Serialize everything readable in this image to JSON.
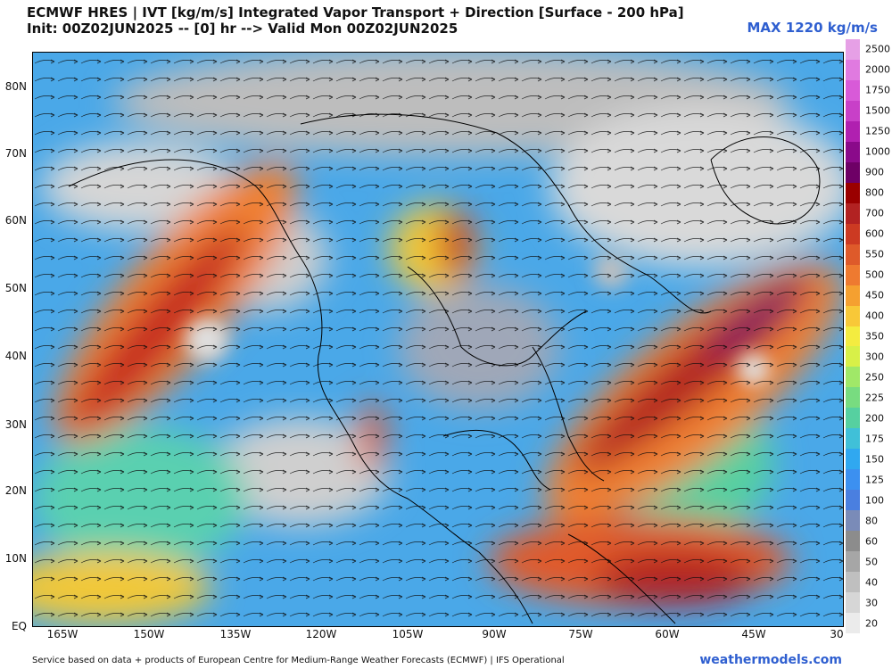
{
  "header": {
    "title_line1": "ECMWF HRES | IVT [kg/m/s] Integrated Vapor Transport + Direction [Surface - 200 hPa]",
    "title_line2": "Init: 00Z02JUN2025 -- [0] hr --> Valid Mon 00Z02JUN2025",
    "max_label": "MAX 1220 kg/m/s"
  },
  "axes": {
    "lat_labels": [
      "80N",
      "70N",
      "60N",
      "50N",
      "40N",
      "30N",
      "20N",
      "10N",
      "EQ"
    ],
    "lon_labels": [
      "165W",
      "150W",
      "135W",
      "120W",
      "105W",
      "90W",
      "75W",
      "60W",
      "45W",
      "30"
    ]
  },
  "colorbar": {
    "levels": [
      "2500",
      "2000",
      "1750",
      "1500",
      "1250",
      "1000",
      "900",
      "800",
      "700",
      "600",
      "550",
      "500",
      "450",
      "400",
      "350",
      "300",
      "250",
      "225",
      "200",
      "175",
      "150",
      "125",
      "100",
      "80",
      "60",
      "50",
      "40",
      "30",
      "20"
    ],
    "colors": [
      "#e6a0e6",
      "#e07ae0",
      "#d85ad8",
      "#c840c8",
      "#b020b0",
      "#8a0a8a",
      "#6e0066",
      "#9a0000",
      "#b22222",
      "#cc3a22",
      "#de5a2a",
      "#ee7a30",
      "#f5a030",
      "#f8c838",
      "#f4ec40",
      "#d8f048",
      "#a0e868",
      "#78dc80",
      "#56d0a0",
      "#40c0d8",
      "#30a8f0",
      "#3c90f0",
      "#4a7fe0",
      "#7a8bb8",
      "#8c8c8c",
      "#a6a6a6",
      "#bfbfbf",
      "#d6d6d6",
      "#ebebeb"
    ]
  },
  "footer": {
    "credit": "Service based on data + products of European Centre for Medium-Range Weather Forecasts (ECMWF) | IFS Operational",
    "brand": "weathermodels.com"
  }
}
